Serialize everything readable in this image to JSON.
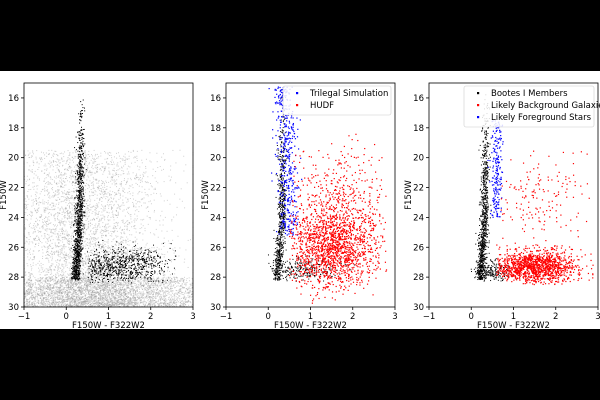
{
  "chart_data": [
    {
      "type": "scatter",
      "panel": "left",
      "xlabel": "F150W - F322W2",
      "ylabel": "F150W",
      "xlim": [
        -1,
        3
      ],
      "ylim": [
        30,
        15
      ],
      "xticks": [
        "−1",
        "0",
        "1",
        "2",
        "3"
      ],
      "yticks": [
        "16",
        "18",
        "20",
        "22",
        "24",
        "26",
        "28",
        "30"
      ],
      "grid": false,
      "legend": [],
      "series": [
        {
          "color": "#9a9a9a",
          "values": "grey background field density, color ~ -1 to 3, magnitude ~ 19 to 30, densest at 28-30"
        },
        {
          "color": "#000000",
          "values": "black members along red giant branch from (0.2, 28) to (0.5, 15.5) plus a broad clump at color 0.5-2.5, magnitude 26-28"
        }
      ]
    },
    {
      "type": "scatter",
      "panel": "middle",
      "xlabel": "F150W - F322W2",
      "ylabel": "F150W",
      "xlim": [
        -1,
        3
      ],
      "ylim": [
        30,
        15
      ],
      "xticks": [
        "−1",
        "0",
        "1",
        "2",
        "3"
      ],
      "yticks": [
        "16",
        "18",
        "20",
        "22",
        "24",
        "26",
        "28",
        "30"
      ],
      "grid": false,
      "legend_position": "top-right",
      "legend": [
        {
          "label": "Trilegal Simulation",
          "color": "#0000ff"
        },
        {
          "label": "HUDF",
          "color": "#ff0000"
        }
      ],
      "series": [
        {
          "name": "Trilegal Simulation",
          "color": "#0000ff",
          "values": "vertical plume at color 0.3-0.9, magnitude 15-25"
        },
        {
          "name": "HUDF",
          "color": "#ff0000",
          "values": "cloud at color 0.5-2.7, magnitude 18.5-29.5, densest near (1.5, 26)"
        }
      ]
    },
    {
      "type": "scatter",
      "panel": "right",
      "xlabel": "F150W - F322W2",
      "ylabel": "F150W",
      "xlim": [
        -1,
        3
      ],
      "ylim": [
        30,
        15
      ],
      "xticks": [
        "−1",
        "0",
        "1",
        "2",
        "3"
      ],
      "yticks": [
        "16",
        "18",
        "20",
        "22",
        "24",
        "26",
        "28",
        "30"
      ],
      "grid": false,
      "legend_position": "top-right",
      "legend": [
        {
          "label": "Bootes I Members",
          "color": "#000000"
        },
        {
          "label": "Likely Background Galaxies",
          "color": "#ff0000"
        },
        {
          "label": "Likely Foreground Stars",
          "color": "#0000ff"
        }
      ],
      "series": [
        {
          "name": "Bootes I Members",
          "color": "#000000",
          "values": "red giant branch from (0.2, 28) to (0.5, 16)"
        },
        {
          "name": "Likely Background Galaxies",
          "color": "#ff0000",
          "values": "clump at color 0.6-2.8, magnitude 24.5-28.5, sparse to magnitude 20"
        },
        {
          "name": "Likely Foreground Stars",
          "color": "#0000ff",
          "values": "plume at color 0.4-0.8, magnitude 18-24"
        }
      ]
    }
  ]
}
